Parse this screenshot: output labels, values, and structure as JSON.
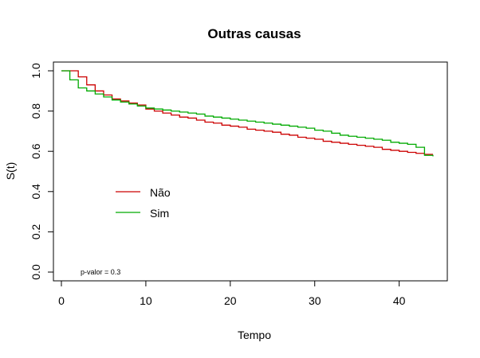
{
  "chart_data": {
    "type": "line",
    "step": true,
    "title": "Outras causas",
    "xlabel": "Tempo",
    "ylabel": "S(t)",
    "xlim": [
      0,
      44
    ],
    "ylim": [
      0,
      1
    ],
    "xticks": [
      0,
      10,
      20,
      30,
      40
    ],
    "yticks": [
      0.0,
      0.2,
      0.4,
      0.6,
      0.8,
      1.0
    ],
    "ytick_labels": [
      "0.0",
      "0.2",
      "0.4",
      "0.6",
      "0.8",
      "1.0"
    ],
    "grid": false,
    "legend_position": "center-left",
    "annotation": "p-valor = 0.3",
    "series": [
      {
        "name": "Não",
        "color": "#cc0000",
        "x": [
          0,
          1,
          2,
          3,
          4,
          5,
          6,
          7,
          8,
          9,
          10,
          11,
          12,
          13,
          14,
          15,
          16,
          17,
          18,
          19,
          20,
          21,
          22,
          23,
          24,
          25,
          26,
          27,
          28,
          29,
          30,
          31,
          32,
          33,
          34,
          35,
          36,
          37,
          38,
          39,
          40,
          41,
          42,
          43,
          44
        ],
        "y": [
          1.0,
          1.0,
          0.97,
          0.93,
          0.9,
          0.88,
          0.86,
          0.85,
          0.84,
          0.83,
          0.81,
          0.8,
          0.79,
          0.78,
          0.77,
          0.765,
          0.755,
          0.745,
          0.74,
          0.73,
          0.725,
          0.72,
          0.71,
          0.705,
          0.7,
          0.695,
          0.685,
          0.68,
          0.67,
          0.665,
          0.66,
          0.65,
          0.645,
          0.64,
          0.635,
          0.63,
          0.625,
          0.62,
          0.61,
          0.605,
          0.6,
          0.595,
          0.59,
          0.585,
          0.585
        ]
      },
      {
        "name": "Sim",
        "color": "#00aa00",
        "x": [
          0,
          1,
          2,
          3,
          4,
          5,
          6,
          7,
          8,
          9,
          10,
          11,
          12,
          13,
          14,
          15,
          16,
          17,
          18,
          19,
          20,
          21,
          22,
          23,
          24,
          25,
          26,
          27,
          28,
          29,
          30,
          31,
          32,
          33,
          34,
          35,
          36,
          37,
          38,
          39,
          40,
          41,
          42,
          43,
          44
        ],
        "y": [
          1.0,
          0.955,
          0.915,
          0.9,
          0.885,
          0.87,
          0.855,
          0.845,
          0.835,
          0.825,
          0.815,
          0.81,
          0.805,
          0.8,
          0.795,
          0.79,
          0.785,
          0.775,
          0.77,
          0.765,
          0.76,
          0.755,
          0.75,
          0.745,
          0.74,
          0.735,
          0.73,
          0.725,
          0.72,
          0.715,
          0.705,
          0.7,
          0.69,
          0.68,
          0.675,
          0.67,
          0.665,
          0.66,
          0.655,
          0.645,
          0.64,
          0.635,
          0.62,
          0.58,
          0.575
        ]
      }
    ]
  }
}
